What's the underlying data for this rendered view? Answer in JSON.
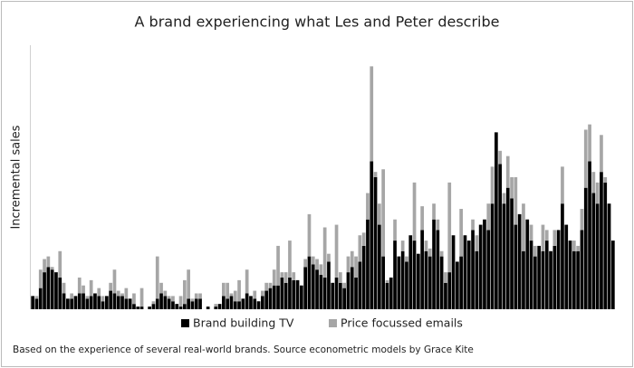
{
  "chart_data": {
    "type": "stacked_bar",
    "title": "A brand experiencing what Les and Peter describe",
    "y_label": "Incremental sales",
    "note": "Based on the experience of several real-world brands. Source econometric models by Grace Kite",
    "ylim": [
      0,
      100
    ],
    "legend": "bottom",
    "series": [
      {
        "name": "Brand building TV",
        "color": "#000000",
        "values": [
          5,
          4,
          8,
          14,
          16,
          15,
          14,
          12,
          6,
          4,
          4,
          5,
          6,
          6,
          4,
          5,
          6,
          5,
          3,
          5,
          7,
          6,
          5,
          5,
          4,
          4,
          2,
          1,
          1,
          0,
          1,
          2,
          4,
          6,
          5,
          4,
          3,
          2,
          1,
          2,
          4,
          3,
          4,
          4,
          0,
          1,
          0,
          1,
          2,
          5,
          4,
          5,
          3,
          3,
          4,
          6,
          5,
          4,
          3,
          5,
          7,
          8,
          9,
          9,
          12,
          10,
          12,
          11,
          11,
          9,
          16,
          20,
          17,
          15,
          13,
          12,
          18,
          10,
          12,
          10,
          8,
          14,
          16,
          12,
          18,
          24,
          34,
          56,
          50,
          32,
          20,
          10,
          12,
          26,
          20,
          22,
          18,
          28,
          26,
          21,
          30,
          22,
          20,
          34,
          30,
          20,
          10,
          14,
          28,
          18,
          20,
          28,
          26,
          30,
          22,
          32,
          34,
          30,
          40,
          67,
          55,
          40,
          46,
          42,
          32,
          36,
          22,
          34,
          26,
          20,
          24,
          22,
          26,
          22,
          24,
          30,
          40,
          32,
          26,
          22,
          22,
          30,
          46,
          56,
          44,
          40,
          52,
          48,
          40,
          26
        ]
      },
      {
        "name": "Price focussed emails",
        "color": "#a6a6a6",
        "values": [
          0,
          1,
          7,
          5,
          4,
          1,
          0,
          10,
          4,
          0,
          2,
          0,
          6,
          3,
          1,
          6,
          0,
          3,
          2,
          0,
          3,
          9,
          2,
          1,
          4,
          0,
          4,
          0,
          7,
          0,
          0,
          1,
          16,
          4,
          2,
          1,
          2,
          0,
          4,
          9,
          11,
          1,
          2,
          2,
          0,
          0,
          0,
          1,
          0,
          5,
          6,
          1,
          4,
          8,
          0,
          9,
          0,
          3,
          0,
          2,
          3,
          2,
          6,
          15,
          2,
          4,
          14,
          3,
          0,
          0,
          3,
          16,
          3,
          4,
          4,
          19,
          3,
          0,
          20,
          4,
          2,
          6,
          6,
          8,
          10,
          5,
          10,
          36,
          2,
          8,
          33,
          1,
          0,
          8,
          0,
          4,
          2,
          0,
          22,
          0,
          9,
          4,
          3,
          6,
          4,
          2,
          4,
          34,
          0,
          0,
          18,
          0,
          0,
          4,
          6,
          0,
          0,
          10,
          14,
          0,
          5,
          4,
          12,
          8,
          18,
          0,
          18,
          0,
          6,
          4,
          0,
          10,
          4,
          0,
          6,
          0,
          14,
          0,
          0,
          4,
          2,
          8,
          22,
          14,
          8,
          8,
          14,
          2,
          0,
          0
        ]
      }
    ]
  }
}
